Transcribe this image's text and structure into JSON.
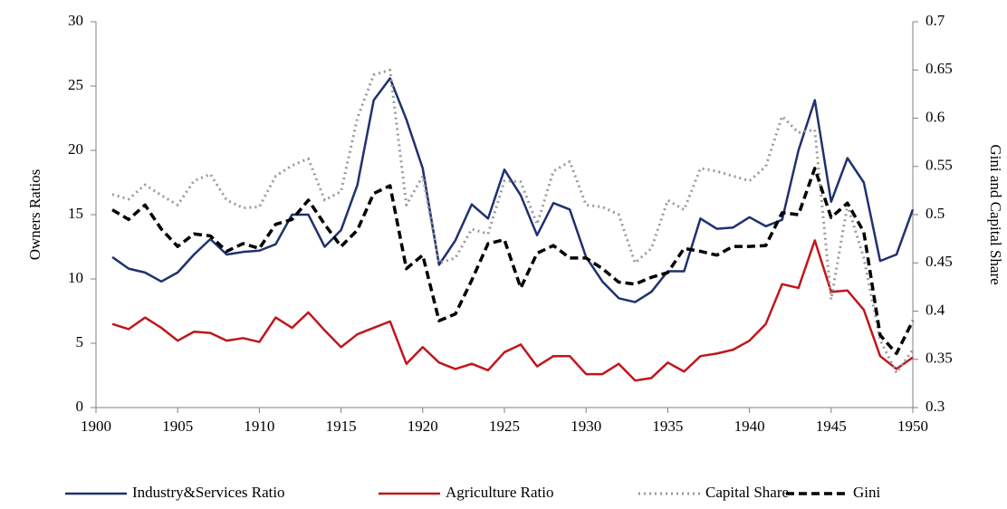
{
  "chart_data": {
    "type": "line",
    "y_axis_label": "Owners Ratios",
    "y2_axis_label": "Gini and Capital Share",
    "x": [
      1901,
      1902,
      1903,
      1904,
      1905,
      1906,
      1907,
      1908,
      1909,
      1910,
      1911,
      1912,
      1913,
      1914,
      1915,
      1916,
      1917,
      1918,
      1919,
      1920,
      1921,
      1922,
      1923,
      1924,
      1925,
      1926,
      1927,
      1928,
      1929,
      1930,
      1931,
      1932,
      1933,
      1934,
      1935,
      1936,
      1937,
      1938,
      1939,
      1940,
      1941,
      1942,
      1943,
      1944,
      1945,
      1946,
      1947,
      1948,
      1949,
      1950
    ],
    "xlim": [
      1900,
      1950
    ],
    "xticks": [
      1900,
      1905,
      1910,
      1915,
      1920,
      1925,
      1930,
      1935,
      1940,
      1945,
      1950
    ],
    "ylim": [
      0,
      30
    ],
    "yticks": [
      0,
      5,
      10,
      15,
      20,
      25,
      30
    ],
    "y2lim": [
      0.3,
      0.7
    ],
    "y2ticks": [
      0.3,
      0.35,
      0.4,
      0.45,
      0.5,
      0.55,
      0.6,
      0.65,
      0.7
    ],
    "grid": false,
    "legend": "bottom",
    "series": [
      {
        "name": "Industry&Services Ratio",
        "color": "#1f3170",
        "line_style": "solid",
        "values": [
          11.7,
          10.8,
          10.5,
          9.8,
          10.5,
          11.9,
          13.1,
          11.9,
          12.1,
          12.2,
          12.7,
          15.0,
          15.0,
          12.5,
          13.8,
          17.3,
          23.9,
          25.6,
          22.4,
          18.6,
          11.1,
          13.0,
          15.8,
          14.7,
          18.5,
          16.5,
          13.4,
          15.9,
          15.4,
          11.7,
          9.8,
          8.5,
          8.2,
          9.0,
          10.6,
          10.6,
          14.7,
          13.9,
          14.0,
          14.8,
          14.1,
          14.6,
          20.0,
          23.9,
          16.0,
          19.4,
          17.5,
          11.4,
          11.9,
          15.4
        ]
      },
      {
        "name": "Agriculture Ratio",
        "color": "#c0161c",
        "line_style": "solid",
        "values": [
          6.5,
          6.1,
          7.0,
          6.2,
          5.2,
          5.9,
          5.8,
          5.2,
          5.4,
          5.1,
          7.0,
          6.2,
          7.4,
          6.0,
          4.7,
          5.7,
          6.2,
          6.7,
          3.4,
          4.7,
          3.5,
          3.0,
          3.4,
          2.9,
          4.3,
          4.9,
          3.2,
          4.0,
          4.0,
          2.6,
          2.6,
          3.4,
          2.1,
          2.3,
          3.5,
          2.8,
          4.0,
          4.2,
          4.5,
          5.2,
          6.5,
          9.6,
          9.3,
          13.0,
          9.0,
          9.1,
          7.6,
          4.0,
          3.0,
          3.9
        ]
      },
      {
        "name": "Capital Share",
        "color": "#9a9a9a",
        "line_style": "dotted",
        "axis": "y2",
        "values": [
          0.521,
          0.516,
          0.531,
          0.52,
          0.51,
          0.535,
          0.542,
          0.515,
          0.507,
          0.508,
          0.54,
          0.551,
          0.558,
          0.515,
          0.524,
          0.6,
          0.645,
          0.65,
          0.51,
          0.54,
          0.45,
          0.455,
          0.485,
          0.48,
          0.535,
          0.534,
          0.49,
          0.545,
          0.555,
          0.51,
          0.508,
          0.5,
          0.45,
          0.465,
          0.515,
          0.505,
          0.548,
          0.545,
          0.54,
          0.535,
          0.55,
          0.602,
          0.585,
          0.588,
          0.412,
          0.51,
          0.455,
          0.37,
          0.336,
          0.36
        ]
      },
      {
        "name": "Gini",
        "color": "#000000",
        "line_style": "dashed",
        "axis": "y2",
        "values": [
          0.505,
          0.495,
          0.51,
          0.485,
          0.467,
          0.48,
          0.478,
          0.462,
          0.47,
          0.465,
          0.49,
          0.495,
          0.515,
          0.49,
          0.467,
          0.484,
          0.522,
          0.53,
          0.444,
          0.458,
          0.39,
          0.397,
          0.432,
          0.47,
          0.474,
          0.424,
          0.46,
          0.468,
          0.455,
          0.455,
          0.444,
          0.43,
          0.428,
          0.435,
          0.44,
          0.465,
          0.462,
          0.458,
          0.467,
          0.467,
          0.468,
          0.502,
          0.5,
          0.548,
          0.497,
          0.512,
          0.482,
          0.375,
          0.356,
          0.39
        ]
      }
    ]
  }
}
